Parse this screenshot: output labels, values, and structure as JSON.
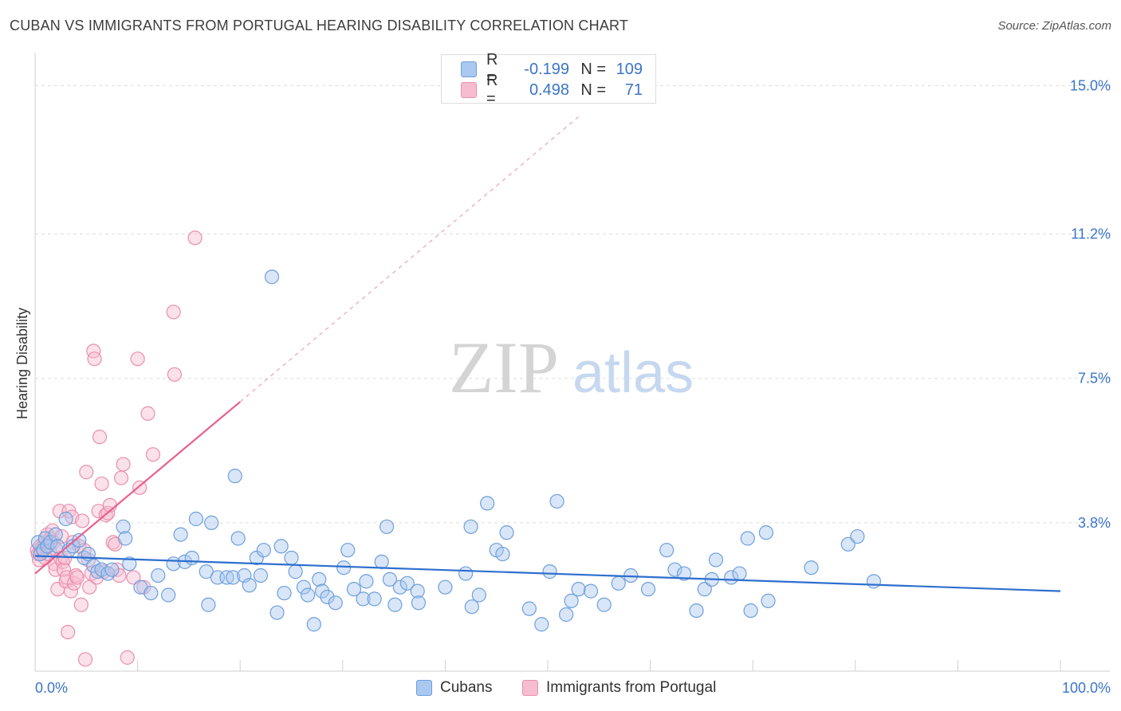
{
  "header": {
    "title": "CUBAN VS IMMIGRANTS FROM PORTUGAL HEARING DISABILITY CORRELATION CHART",
    "source": "Source: ZipAtlas.com"
  },
  "watermark": {
    "zip": "ZIP",
    "atlas": "atlas"
  },
  "legend_top": [
    {
      "r_label": "R =",
      "r_value": "-0.199",
      "n_label": "N =",
      "n_value": "109"
    },
    {
      "r_label": "R =",
      "r_value": "0.498",
      "n_label": "N =",
      "n_value": "71"
    }
  ],
  "legend_bottom": [
    {
      "label": "Cubans"
    },
    {
      "label": "Immigrants from Portugal"
    }
  ],
  "colors": {
    "blue_fill": "#aac8f0",
    "blue_stroke": "#6e9fdc",
    "blue_line": "#2d6fce",
    "pink_fill": "#f6bdd0",
    "pink_stroke": "#ea8fae",
    "pink_line": "#e8608c",
    "axis_text": "#3a74c9",
    "grid": "#dddddd"
  },
  "chart_data": {
    "type": "scatter",
    "title": "CUBAN VS IMMIGRANTS FROM PORTUGAL HEARING DISABILITY CORRELATION CHART",
    "xlabel": "",
    "ylabel": "Hearing Disability",
    "xlim": [
      0,
      100
    ],
    "ylim": [
      0,
      15.6
    ],
    "x_tick_labels": [
      "0.0%",
      "100.0%"
    ],
    "y_ticks": [
      3.8,
      7.5,
      11.2,
      15.0
    ],
    "y_tick_labels": [
      "3.8%",
      "7.5%",
      "11.2%",
      "15.0%"
    ],
    "series": [
      {
        "name": "Cubans",
        "r": -0.199,
        "n": 109,
        "trend": {
          "x0": 0,
          "y0": 2.95,
          "x1": 100,
          "y1": 2.05
        },
        "points": [
          [
            0.3,
            3.3
          ],
          [
            0.5,
            3.0
          ],
          [
            0.8,
            3.1
          ],
          [
            1.0,
            3.4
          ],
          [
            1.2,
            3.2
          ],
          [
            1.5,
            3.3
          ],
          [
            2.0,
            3.5
          ],
          [
            2.2,
            3.2
          ],
          [
            3.0,
            3.9
          ],
          [
            3.3,
            3.1
          ],
          [
            3.7,
            3.2
          ],
          [
            4.3,
            3.35
          ],
          [
            4.8,
            2.9
          ],
          [
            5.2,
            3.0
          ],
          [
            5.7,
            2.7
          ],
          [
            6.1,
            2.55
          ],
          [
            6.5,
            2.6
          ],
          [
            7.1,
            2.5
          ],
          [
            7.5,
            2.6
          ],
          [
            8.6,
            3.7
          ],
          [
            8.8,
            3.4
          ],
          [
            9.2,
            2.75
          ],
          [
            10.3,
            2.15
          ],
          [
            11.3,
            2.0
          ],
          [
            12.0,
            2.45
          ],
          [
            13.0,
            1.95
          ],
          [
            13.5,
            2.75
          ],
          [
            14.2,
            3.5
          ],
          [
            14.6,
            2.8
          ],
          [
            15.3,
            2.9
          ],
          [
            15.7,
            3.9
          ],
          [
            16.7,
            2.55
          ],
          [
            16.9,
            1.7
          ],
          [
            17.2,
            3.8
          ],
          [
            17.8,
            2.4
          ],
          [
            18.7,
            2.4
          ],
          [
            19.3,
            2.4
          ],
          [
            19.5,
            5.0
          ],
          [
            19.8,
            3.4
          ],
          [
            20.4,
            2.45
          ],
          [
            20.9,
            2.2
          ],
          [
            21.6,
            2.9
          ],
          [
            22.0,
            2.45
          ],
          [
            22.3,
            3.1
          ],
          [
            23.1,
            10.1
          ],
          [
            23.6,
            1.5
          ],
          [
            24.0,
            3.2
          ],
          [
            24.3,
            2.0
          ],
          [
            25.0,
            2.9
          ],
          [
            25.4,
            2.55
          ],
          [
            26.2,
            2.15
          ],
          [
            26.6,
            1.95
          ],
          [
            27.2,
            1.2
          ],
          [
            27.7,
            2.35
          ],
          [
            28.0,
            2.05
          ],
          [
            28.5,
            1.9
          ],
          [
            29.3,
            1.75
          ],
          [
            30.1,
            2.65
          ],
          [
            30.5,
            3.1
          ],
          [
            31.1,
            2.1
          ],
          [
            32.0,
            1.85
          ],
          [
            32.3,
            2.3
          ],
          [
            33.1,
            1.85
          ],
          [
            33.8,
            2.8
          ],
          [
            34.3,
            3.7
          ],
          [
            34.6,
            2.35
          ],
          [
            35.1,
            1.7
          ],
          [
            35.6,
            2.15
          ],
          [
            36.3,
            2.25
          ],
          [
            37.3,
            2.05
          ],
          [
            37.4,
            1.75
          ],
          [
            40.0,
            2.15
          ],
          [
            42.0,
            2.5
          ],
          [
            42.5,
            3.7
          ],
          [
            42.6,
            1.65
          ],
          [
            43.3,
            1.95
          ],
          [
            44.1,
            4.3
          ],
          [
            45.0,
            3.1
          ],
          [
            45.6,
            3.0
          ],
          [
            46.0,
            3.55
          ],
          [
            48.2,
            1.6
          ],
          [
            49.4,
            1.2
          ],
          [
            50.2,
            2.55
          ],
          [
            50.9,
            4.35
          ],
          [
            51.8,
            1.45
          ],
          [
            52.3,
            1.8
          ],
          [
            53.0,
            2.1
          ],
          [
            54.2,
            2.05
          ],
          [
            55.5,
            1.7
          ],
          [
            56.9,
            2.25
          ],
          [
            58.1,
            2.45
          ],
          [
            59.8,
            2.1
          ],
          [
            61.6,
            3.1
          ],
          [
            62.4,
            2.6
          ],
          [
            63.3,
            2.5
          ],
          [
            64.5,
            1.55
          ],
          [
            65.3,
            2.1
          ],
          [
            66.0,
            2.35
          ],
          [
            66.4,
            2.85
          ],
          [
            67.9,
            2.4
          ],
          [
            68.7,
            2.5
          ],
          [
            69.5,
            3.4
          ],
          [
            69.8,
            1.55
          ],
          [
            71.3,
            3.55
          ],
          [
            71.5,
            1.8
          ],
          [
            75.7,
            2.65
          ],
          [
            79.3,
            3.25
          ],
          [
            80.2,
            3.45
          ],
          [
            81.8,
            2.3
          ]
        ]
      },
      {
        "name": "Immigrants from Portugal",
        "r": 0.498,
        "n": 71,
        "trend": {
          "x0": 0,
          "y0": 2.5,
          "x1": 20,
          "y1": 6.9
        },
        "trend_extension": {
          "x0": 20,
          "y0": 6.9,
          "x1": 53,
          "y1": 14.2
        },
        "points": [
          [
            0.2,
            3.1
          ],
          [
            0.3,
            3.0
          ],
          [
            0.4,
            2.85
          ],
          [
            0.5,
            3.2
          ],
          [
            0.6,
            3.05
          ],
          [
            0.7,
            3.15
          ],
          [
            0.8,
            3.1
          ],
          [
            0.9,
            3.3
          ],
          [
            1.0,
            2.9
          ],
          [
            1.1,
            3.2
          ],
          [
            1.2,
            3.5
          ],
          [
            1.3,
            3.0
          ],
          [
            1.4,
            3.1
          ],
          [
            1.5,
            3.4
          ],
          [
            1.7,
            3.6
          ],
          [
            1.8,
            3.3
          ],
          [
            1.9,
            2.75
          ],
          [
            2.0,
            2.6
          ],
          [
            2.1,
            3.1
          ],
          [
            2.2,
            2.1
          ],
          [
            2.4,
            4.1
          ],
          [
            2.5,
            2.9
          ],
          [
            2.6,
            3.45
          ],
          [
            2.7,
            2.8
          ],
          [
            2.8,
            2.6
          ],
          [
            2.9,
            2.9
          ],
          [
            3.0,
            2.3
          ],
          [
            3.1,
            2.4
          ],
          [
            3.2,
            1.0
          ],
          [
            3.3,
            4.1
          ],
          [
            3.5,
            2.05
          ],
          [
            3.6,
            3.95
          ],
          [
            3.7,
            3.3
          ],
          [
            3.8,
            2.25
          ],
          [
            4.0,
            2.45
          ],
          [
            4.1,
            2.4
          ],
          [
            4.3,
            3.2
          ],
          [
            4.5,
            1.7
          ],
          [
            4.6,
            3.85
          ],
          [
            4.8,
            3.1
          ],
          [
            4.9,
            0.3
          ],
          [
            5.0,
            5.1
          ],
          [
            5.2,
            2.85
          ],
          [
            5.3,
            2.15
          ],
          [
            5.5,
            2.5
          ],
          [
            5.7,
            8.2
          ],
          [
            5.8,
            8.0
          ],
          [
            6.0,
            2.4
          ],
          [
            6.2,
            4.1
          ],
          [
            6.3,
            6.0
          ],
          [
            6.5,
            4.8
          ],
          [
            6.7,
            2.55
          ],
          [
            6.9,
            4.0
          ],
          [
            7.1,
            4.05
          ],
          [
            7.3,
            4.25
          ],
          [
            7.6,
            3.3
          ],
          [
            7.8,
            3.25
          ],
          [
            8.0,
            2.6
          ],
          [
            8.2,
            2.45
          ],
          [
            8.4,
            4.95
          ],
          [
            8.6,
            5.3
          ],
          [
            9.0,
            0.35
          ],
          [
            9.6,
            2.4
          ],
          [
            10.0,
            8.0
          ],
          [
            10.2,
            4.7
          ],
          [
            10.6,
            2.15
          ],
          [
            11.0,
            6.6
          ],
          [
            11.5,
            5.55
          ],
          [
            13.5,
            9.2
          ],
          [
            13.6,
            7.6
          ],
          [
            15.6,
            11.1
          ]
        ]
      }
    ]
  }
}
